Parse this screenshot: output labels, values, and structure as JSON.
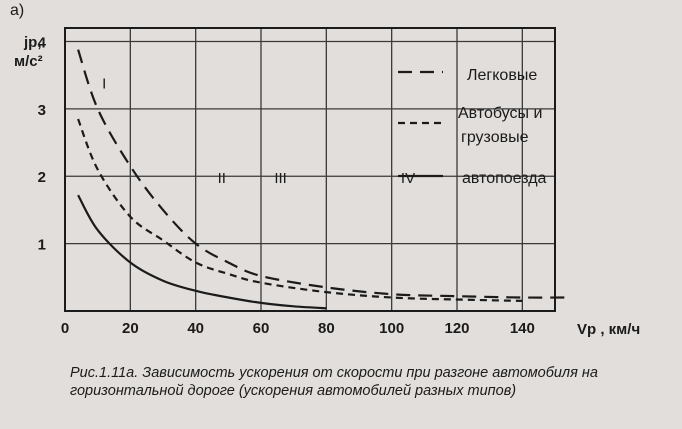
{
  "panel_label": "а)",
  "caption": {
    "figure_number": "Рис.1.11а.",
    "text": "Зависимость ускорения от скорости при разгоне автомобиля на горизонтальной дороге (ускорения автомобилей разных типов)"
  },
  "chart_data": {
    "type": "line",
    "title": "",
    "ylabel": "jр, м/с²",
    "xlabel": "Vр , км/ч",
    "xlim": [
      0,
      150
    ],
    "ylim": [
      0,
      4.2
    ],
    "x_ticks": [
      "0",
      "20",
      "40",
      "60",
      "80",
      "100",
      "120",
      "140"
    ],
    "y_ticks": [
      "1",
      "2",
      "3",
      "4"
    ],
    "grid": true,
    "legend_position": "top-right",
    "zones": [
      "I",
      "II",
      "III",
      "IV"
    ],
    "series": [
      {
        "name": "Легковые",
        "style": "long-dash",
        "points": [
          [
            4,
            3.88
          ],
          [
            10,
            3.0
          ],
          [
            20,
            2.15
          ],
          [
            30,
            1.5
          ],
          [
            40,
            1.0
          ],
          [
            50,
            0.72
          ],
          [
            60,
            0.52
          ],
          [
            80,
            0.35
          ],
          [
            100,
            0.25
          ],
          [
            120,
            0.22
          ],
          [
            140,
            0.2
          ],
          [
            155,
            0.2
          ]
        ]
      },
      {
        "name": "Автобусы и грузовые",
        "style": "short-dash",
        "points": [
          [
            4,
            2.85
          ],
          [
            10,
            2.1
          ],
          [
            20,
            1.4
          ],
          [
            30,
            1.05
          ],
          [
            40,
            0.72
          ],
          [
            50,
            0.55
          ],
          [
            60,
            0.42
          ],
          [
            80,
            0.28
          ],
          [
            100,
            0.2
          ],
          [
            120,
            0.17
          ],
          [
            140,
            0.15
          ]
        ]
      },
      {
        "name": "автопоезда",
        "style": "solid",
        "points": [
          [
            4,
            1.72
          ],
          [
            10,
            1.2
          ],
          [
            20,
            0.72
          ],
          [
            30,
            0.45
          ],
          [
            40,
            0.3
          ],
          [
            50,
            0.2
          ],
          [
            60,
            0.12
          ],
          [
            70,
            0.07
          ],
          [
            80,
            0.04
          ]
        ]
      }
    ]
  }
}
